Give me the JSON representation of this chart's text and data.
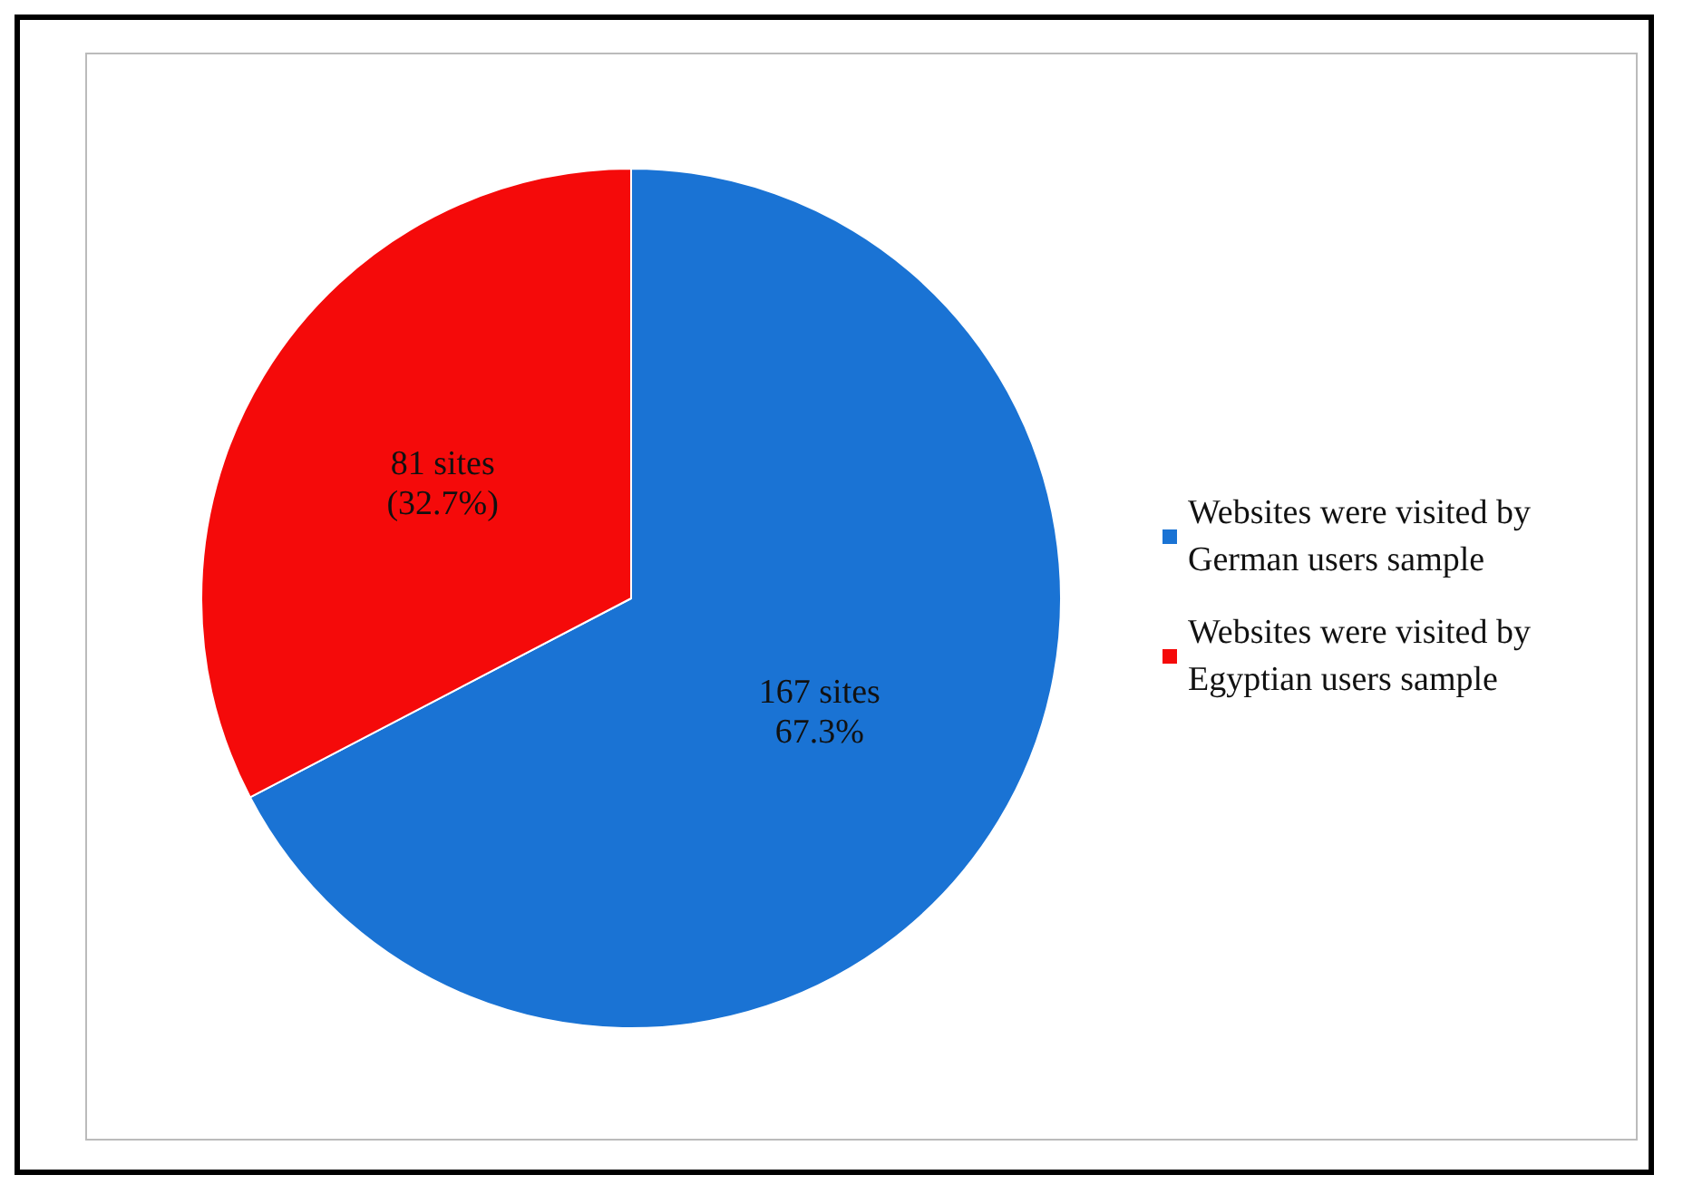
{
  "chart_data": {
    "type": "pie",
    "categories": [
      "Websites were visited by German users sample",
      "Websites were visited by Egyptian users sample"
    ],
    "values": [
      167,
      81
    ],
    "colors": [
      "#1a73d4",
      "#f50a0a"
    ],
    "value_labels": [
      "167 sites\n67.3%",
      "81 sites\n(32.7%)"
    ],
    "legend": "right"
  }
}
